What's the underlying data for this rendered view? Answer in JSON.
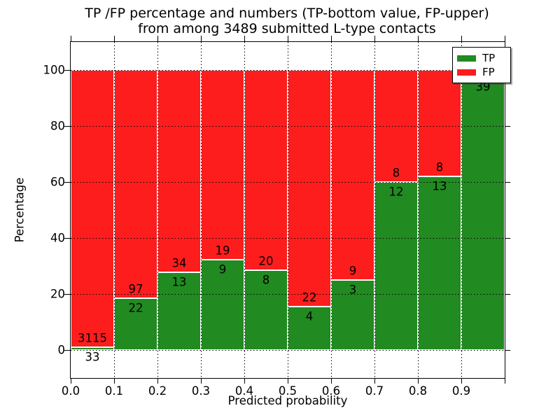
{
  "title": {
    "line1": "TP /FP percentage and numbers (TP-bottom value, FP-upper)",
    "line2": "from among 3489 submitted L-type contacts"
  },
  "axes": {
    "ylabel": "Percentage",
    "xlabel": "Predicted probability",
    "y_ticks": [
      "0",
      "20",
      "40",
      "60",
      "80",
      "100"
    ],
    "x_ticks": [
      "0.0",
      "0.1",
      "0.2",
      "0.3",
      "0.4",
      "0.5",
      "0.6",
      "0.7",
      "0.8",
      "0.9"
    ]
  },
  "legend": {
    "items": [
      {
        "label": "TP",
        "color": "#218a21"
      },
      {
        "label": "FP",
        "color": "#fd1d1d"
      }
    ]
  },
  "colors": {
    "tp": "#218a21",
    "fp": "#fd1d1d",
    "frame": "#000000"
  },
  "chart_data": {
    "type": "bar",
    "stacked": true,
    "normalized_to_percent": true,
    "title": "TP /FP percentage and numbers (TP-bottom value, FP-upper) from among 3489 submitted L-type contacts",
    "xlabel": "Predicted probability",
    "ylabel": "Percentage",
    "x_bin_start": [
      0.0,
      0.1,
      0.2,
      0.3,
      0.4,
      0.5,
      0.6,
      0.7,
      0.8,
      0.9
    ],
    "bin_width": 0.1,
    "xlim": [
      0,
      1
    ],
    "ylim": [
      -10,
      110
    ],
    "grid": true,
    "legend_position": "upper right",
    "series": [
      {
        "name": "TP",
        "color": "#218a21",
        "values": [
          33,
          22,
          13,
          9,
          8,
          4,
          3,
          12,
          13,
          39
        ]
      },
      {
        "name": "FP",
        "color": "#fd1d1d",
        "values": [
          3115,
          97,
          34,
          19,
          20,
          22,
          9,
          8,
          8,
          1
        ]
      }
    ],
    "tp_percent": [
      1.05,
      18.49,
      27.66,
      32.14,
      28.57,
      15.38,
      25.0,
      60.0,
      61.9,
      97.5
    ],
    "bar_labels": {
      "fp": [
        "3115",
        "97",
        "34",
        "19",
        "20",
        "22",
        "9",
        "8",
        "8",
        ""
      ],
      "tp": [
        "33",
        "22",
        "13",
        "9",
        "8",
        "4",
        "3",
        "12",
        "13",
        "39"
      ]
    }
  }
}
